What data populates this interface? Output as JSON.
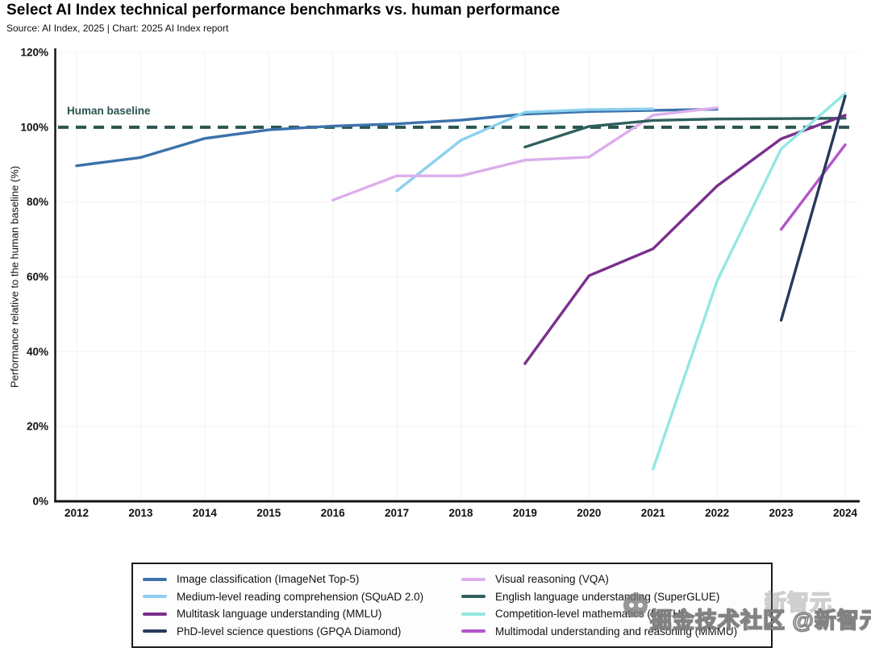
{
  "header": {
    "title": "Select AI Index technical performance benchmarks vs. human performance",
    "source_line": "Source: AI Index, 2025 | Chart: 2025 AI Index report"
  },
  "chart_data": {
    "type": "line",
    "title": "Select AI Index technical performance benchmarks vs. human performance",
    "xlabel": "",
    "ylabel": "Performance relative to the human baseline (%)",
    "xlim": [
      2012,
      2024
    ],
    "ylim": [
      0,
      120
    ],
    "x_ticks": [
      2012,
      2013,
      2014,
      2015,
      2016,
      2017,
      2018,
      2019,
      2020,
      2021,
      2022,
      2023,
      2024
    ],
    "y_tick_values": [
      0,
      20,
      40,
      60,
      80,
      100,
      120
    ],
    "y_tick_labels": [
      "0%",
      "20%",
      "40%",
      "60%",
      "80%",
      "100%",
      "120%"
    ],
    "grid": true,
    "legend_position": "bottom",
    "baseline": {
      "value": 100,
      "label": "Human baseline",
      "color": "#2b544f",
      "style": "dashed"
    },
    "series": [
      {
        "name": "Image classification (ImageNet Top-5)",
        "color": "#3b72ab",
        "x": [
          2012,
          2013,
          2014,
          2015,
          2016,
          2017,
          2018,
          2019,
          2020,
          2021,
          2022
        ],
        "values": [
          89.7,
          91.9,
          97.0,
          99.3,
          100.3,
          100.9,
          101.9,
          103.5,
          104.2,
          104.5,
          104.8
        ]
      },
      {
        "name": "Medium-level reading comprehension (SQuAD 2.0)",
        "color": "#8bd0f0",
        "x": [
          2017,
          2018,
          2019,
          2020,
          2021
        ],
        "values": [
          83.0,
          96.5,
          104.0,
          104.7,
          104.9
        ]
      },
      {
        "name": "Multitask language understanding (MMLU)",
        "color": "#7b2f8e",
        "x": [
          2019,
          2020,
          2021,
          2022,
          2023,
          2024
        ],
        "values": [
          36.8,
          60.3,
          67.5,
          84.3,
          96.9,
          103.2
        ]
      },
      {
        "name": "PhD-level science questions (GPQA Diamond)",
        "color": "#273a5c",
        "x": [
          2023,
          2024
        ],
        "values": [
          48.4,
          108.3
        ]
      },
      {
        "name": "Visual reasoning (VQA)",
        "color": "#ddaeeb",
        "x": [
          2016,
          2017,
          2018,
          2019,
          2020,
          2021,
          2022
        ],
        "values": [
          80.5,
          87.0,
          87.0,
          91.2,
          92.0,
          103.2,
          105.2
        ]
      },
      {
        "name": "English language understanding (SuperGLUE)",
        "color": "#2f605d",
        "x": [
          2019,
          2020,
          2021,
          2022,
          2023,
          2024
        ],
        "values": [
          94.7,
          100.2,
          101.8,
          102.2,
          102.3,
          102.4
        ]
      },
      {
        "name": "Competition-level mathematics (MATH)",
        "color": "#93e7e2",
        "x": [
          2021,
          2022,
          2023,
          2024
        ],
        "values": [
          8.6,
          58.9,
          94.2,
          109.0
        ]
      },
      {
        "name": "Multimodal understanding and reasoning (MMMU)",
        "color": "#b454c9",
        "x": [
          2023,
          2024
        ],
        "values": [
          72.7,
          95.3
        ]
      }
    ],
    "draw_order": [
      0,
      1,
      4,
      5,
      2,
      6,
      7,
      3
    ]
  },
  "watermark": {
    "text": "掘金技术社区 @新智元",
    "echo_text": "新智元"
  }
}
